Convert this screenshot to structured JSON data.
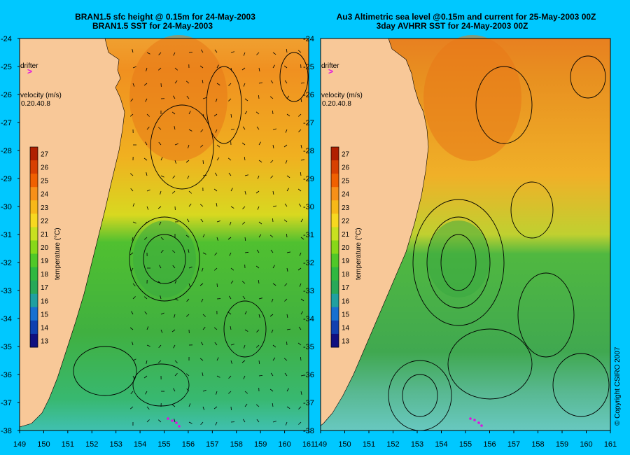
{
  "background_color": "#00c8ff",
  "land_color": "#f8c898",
  "left_panel": {
    "title_line1": "BRAN1.5 sfc height @ 0.15m for 24-May-2003",
    "title_line2": "BRAN1.5 SST for 24-May-2003"
  },
  "right_panel": {
    "title_line1": "Au3 Altimetric sea level  @0.15m and current for 25-May-2003 00Z",
    "title_line2": "3day AVHRR SST for 24-May-2003 00Z"
  },
  "axes": {
    "lat_labels": [
      "-24",
      "-25",
      "-26",
      "-27",
      "-28",
      "-29",
      "-30",
      "-31",
      "-32",
      "-33",
      "-34",
      "-35",
      "-36",
      "-37",
      "-38"
    ],
    "lon_labels": [
      "149",
      "150",
      "151",
      "152",
      "153",
      "154",
      "155",
      "156",
      "157",
      "158",
      "159",
      "160",
      "161"
    ]
  },
  "legend": {
    "drifter_label": "drifter",
    "drifter_symbol": ">",
    "velocity_label": "velocity (m/s)",
    "velocity_values": [
      "0.2",
      "0.4",
      "0.8"
    ],
    "colorbar_title": "temperature (°C)",
    "colorbar_ticks": [
      "27",
      "26",
      "25",
      "24",
      "23",
      "22",
      "21",
      "20",
      "19",
      "18",
      "17",
      "16",
      "15",
      "14",
      "13"
    ],
    "colorbar_colors": [
      "#b02000",
      "#d84000",
      "#f06000",
      "#f89018",
      "#f8b818",
      "#f8d820",
      "#c8e020",
      "#88d818",
      "#50c828",
      "#30b840",
      "#28a858",
      "#20a0a0",
      "#1870d0",
      "#1040b0",
      "#101080"
    ]
  },
  "copyright": "© Copyright CSIRO 2007"
}
